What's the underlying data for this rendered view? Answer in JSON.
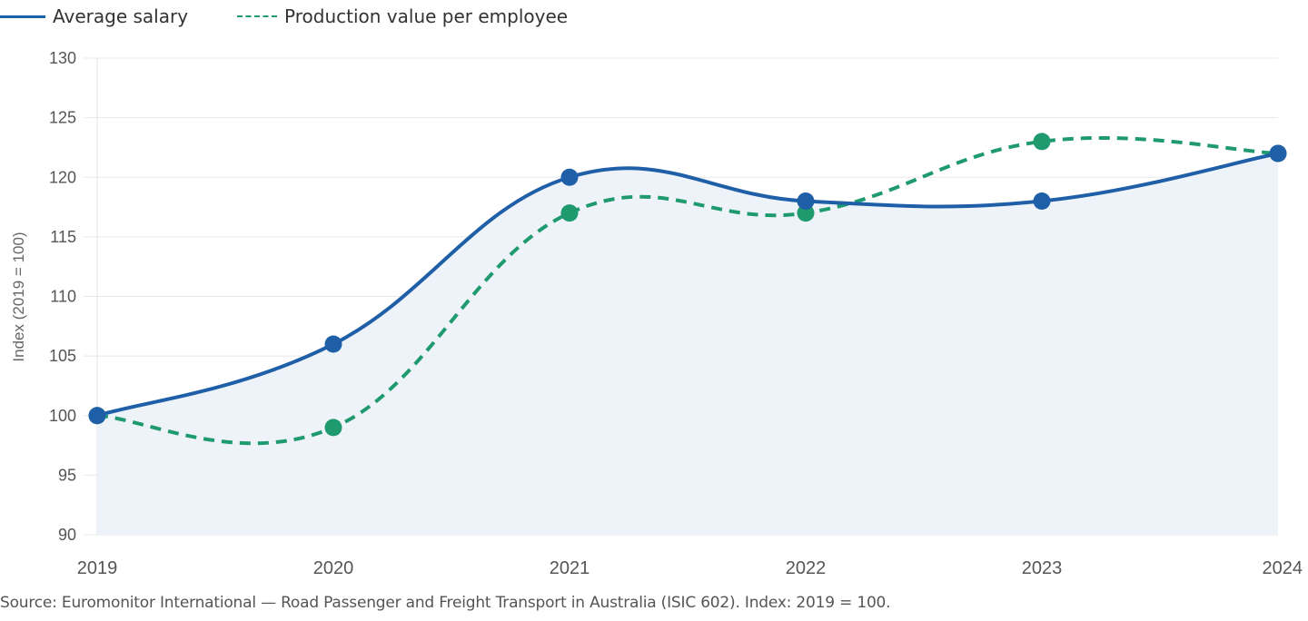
{
  "chart_data": {
    "type": "line",
    "title": "",
    "xlabel": "",
    "ylabel": "Index (2019 = 100)",
    "x": [
      "2019",
      "2020",
      "2021",
      "2022",
      "2023",
      "2024"
    ],
    "ylim": [
      90,
      130
    ],
    "yticks": [
      90,
      95,
      100,
      105,
      110,
      115,
      120,
      125,
      130
    ],
    "grid": true,
    "legend_position": "top-left",
    "series": [
      {
        "name": "Average salary",
        "values": [
          100,
          106,
          120,
          118,
          118,
          122
        ],
        "color": "#1f5fa8",
        "style": "solid",
        "area_fill": "#eef3f9"
      },
      {
        "name": "Production value per employee",
        "values": [
          100,
          99,
          117,
          117,
          123,
          122
        ],
        "color": "#1f9a6e",
        "style": "dashed"
      }
    ]
  },
  "source": "Source: Euromonitor International — Road Passenger and Freight Transport in Australia (ISIC 602). Index: 2019 = 100."
}
